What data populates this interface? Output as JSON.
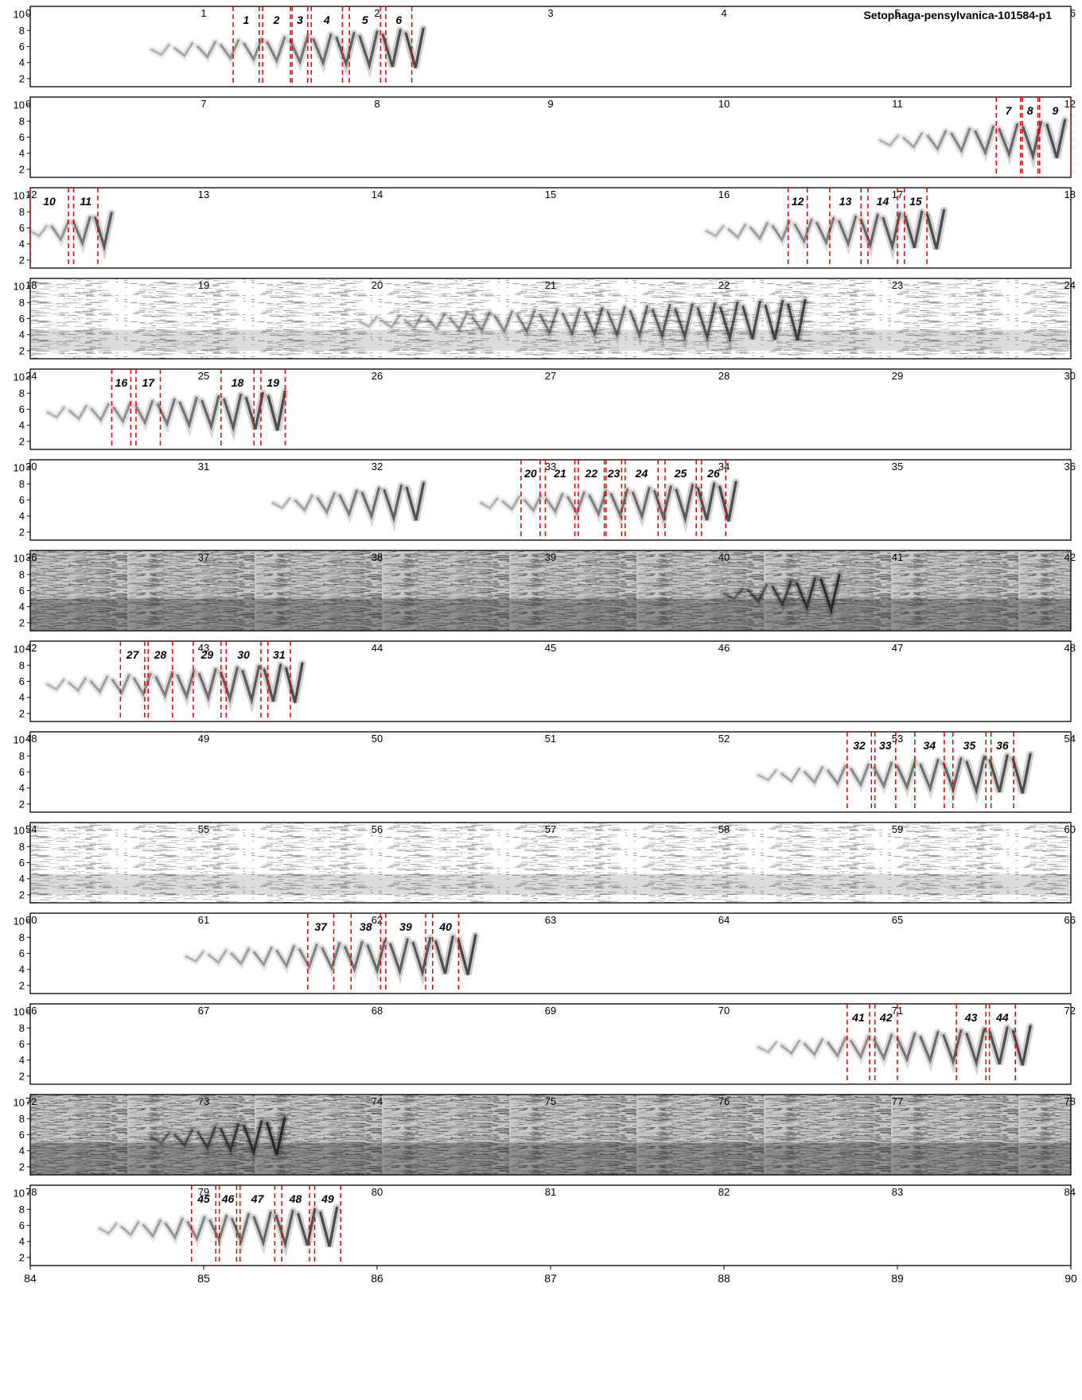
{
  "chart_data": {
    "type": "spectrogram",
    "title": "Setophaga-pensylvanica-101584-p1",
    "row_duration": 6,
    "ylim": [
      1,
      11
    ],
    "y_ticks": [
      2,
      4,
      6,
      8,
      10
    ],
    "rows": [
      {
        "t0": 0,
        "tick_labels": [
          "0",
          "1",
          "2",
          "3",
          "4",
          "5",
          "6"
        ],
        "noise": "clean"
      },
      {
        "t0": 6,
        "tick_labels": [
          "6",
          "7",
          "8",
          "9",
          "10",
          "11",
          "12"
        ],
        "noise": "clean"
      },
      {
        "t0": 12,
        "tick_labels": [
          "12",
          "13",
          "14",
          "15",
          "16",
          "17",
          "18"
        ],
        "noise": "clean"
      },
      {
        "t0": 18,
        "tick_labels": [
          "18",
          "19",
          "20",
          "21",
          "22",
          "23",
          "24"
        ],
        "noise": "light"
      },
      {
        "t0": 24,
        "tick_labels": [
          "24",
          "25",
          "26",
          "27",
          "28",
          "29",
          "30"
        ],
        "noise": "clean"
      },
      {
        "t0": 30,
        "tick_labels": [
          "30",
          "31",
          "32",
          "33",
          "34",
          "35",
          "36"
        ],
        "noise": "clean"
      },
      {
        "t0": 36,
        "tick_labels": [
          "36",
          "37",
          "38",
          "39",
          "40",
          "41",
          "42"
        ],
        "noise": "heavy"
      },
      {
        "t0": 42,
        "tick_labels": [
          "42",
          "43",
          "44",
          "45",
          "46",
          "47",
          "48"
        ],
        "noise": "clean"
      },
      {
        "t0": 48,
        "tick_labels": [
          "48",
          "49",
          "50",
          "51",
          "52",
          "53",
          "54"
        ],
        "noise": "clean"
      },
      {
        "t0": 54,
        "tick_labels": [
          "54",
          "55",
          "56",
          "57",
          "58",
          "59",
          "60"
        ],
        "noise": "light"
      },
      {
        "t0": 60,
        "tick_labels": [
          "60",
          "61",
          "62",
          "63",
          "64",
          "65",
          "66"
        ],
        "noise": "clean"
      },
      {
        "t0": 66,
        "tick_labels": [
          "66",
          "67",
          "68",
          "69",
          "70",
          "71",
          "72"
        ],
        "noise": "clean"
      },
      {
        "t0": 72,
        "tick_labels": [
          "72",
          "73",
          "74",
          "75",
          "76",
          "77",
          "78"
        ],
        "noise": "heavy"
      },
      {
        "t0": 78,
        "tick_labels": [
          "78",
          "79",
          "80",
          "81",
          "82",
          "83",
          "84"
        ],
        "noise": "clean"
      }
    ],
    "bottom_axis_labels": [
      "84",
      "85",
      "86",
      "87",
      "88",
      "89",
      "90"
    ],
    "songs": [
      {
        "row": 0,
        "start": 0.7,
        "end": 2.3
      },
      {
        "row": 1,
        "start": 10.9,
        "end": 12.0
      },
      {
        "row": 2,
        "start": 12.0,
        "end": 12.5
      },
      {
        "row": 2,
        "start": 15.9,
        "end": 17.3
      },
      {
        "row": 3,
        "start": 19.9,
        "end": 22.5
      },
      {
        "row": 4,
        "start": 24.1,
        "end": 25.5
      },
      {
        "row": 5,
        "start": 31.4,
        "end": 32.3
      },
      {
        "row": 5,
        "start": 32.6,
        "end": 34.1
      },
      {
        "row": 6,
        "start": 40.0,
        "end": 40.7
      },
      {
        "row": 7,
        "start": 42.1,
        "end": 43.6
      },
      {
        "row": 8,
        "start": 52.2,
        "end": 53.8
      },
      {
        "row": 10,
        "start": 60.9,
        "end": 62.6
      },
      {
        "row": 11,
        "start": 70.2,
        "end": 71.8
      },
      {
        "row": 12,
        "start": 72.7,
        "end": 73.5
      },
      {
        "row": 13,
        "start": 78.4,
        "end": 79.8
      }
    ],
    "syllables": [
      {
        "label": "1",
        "start": 1.17,
        "end": 1.32
      },
      {
        "label": "2",
        "start": 1.34,
        "end": 1.5
      },
      {
        "label": "3",
        "start": 1.51,
        "end": 1.6
      },
      {
        "label": "4",
        "start": 1.62,
        "end": 1.8
      },
      {
        "label": "5",
        "start": 1.84,
        "end": 2.02
      },
      {
        "label": "6",
        "start": 2.05,
        "end": 2.2
      },
      {
        "label": "7",
        "start": 11.57,
        "end": 11.71
      },
      {
        "label": "8",
        "start": 11.72,
        "end": 11.81
      },
      {
        "label": "9",
        "start": 11.82,
        "end": 12.0
      },
      {
        "label": "10",
        "start": 12.0,
        "end": 12.22
      },
      {
        "label": "11",
        "start": 12.25,
        "end": 12.39
      },
      {
        "label": "12",
        "start": 16.37,
        "end": 16.48
      },
      {
        "label": "13",
        "start": 16.61,
        "end": 16.79
      },
      {
        "label": "14",
        "start": 16.83,
        "end": 17.0
      },
      {
        "label": "15",
        "start": 17.04,
        "end": 17.17
      },
      {
        "label": "16",
        "start": 24.47,
        "end": 24.58
      },
      {
        "label": "17",
        "start": 24.61,
        "end": 24.75
      },
      {
        "label": "18",
        "start": 25.1,
        "end": 25.29
      },
      {
        "label": "19",
        "start": 25.33,
        "end": 25.47
      },
      {
        "label": "20",
        "start": 32.83,
        "end": 32.94
      },
      {
        "label": "21",
        "start": 32.97,
        "end": 33.14
      },
      {
        "label": "22",
        "start": 33.16,
        "end": 33.31
      },
      {
        "label": "23",
        "start": 33.32,
        "end": 33.41
      },
      {
        "label": "24",
        "start": 33.43,
        "end": 33.62
      },
      {
        "label": "25",
        "start": 33.66,
        "end": 33.84
      },
      {
        "label": "26",
        "start": 33.87,
        "end": 34.01
      },
      {
        "label": "27",
        "start": 42.52,
        "end": 42.66
      },
      {
        "label": "28",
        "start": 42.68,
        "end": 42.82
      },
      {
        "label": "29",
        "start": 42.94,
        "end": 43.1
      },
      {
        "label": "30",
        "start": 43.13,
        "end": 43.33
      },
      {
        "label": "31",
        "start": 43.37,
        "end": 43.5
      },
      {
        "label": "32",
        "start": 52.71,
        "end": 52.85
      },
      {
        "label": "33",
        "start": 52.87,
        "end": 52.99
      },
      {
        "label": "34",
        "start": 53.1,
        "end": 53.27
      },
      {
        "label": "35",
        "start": 53.32,
        "end": 53.51
      },
      {
        "label": "36",
        "start": 53.54,
        "end": 53.67
      },
      {
        "label": "37",
        "start": 61.6,
        "end": 61.75
      },
      {
        "label": "38",
        "start": 61.85,
        "end": 62.02
      },
      {
        "label": "39",
        "start": 62.05,
        "end": 62.28
      },
      {
        "label": "40",
        "start": 62.32,
        "end": 62.47
      },
      {
        "label": "41",
        "start": 70.71,
        "end": 70.84
      },
      {
        "label": "42",
        "start": 70.87,
        "end": 71.0
      },
      {
        "label": "43",
        "start": 71.34,
        "end": 71.51
      },
      {
        "label": "44",
        "start": 71.53,
        "end": 71.68
      },
      {
        "label": "45",
        "start": 78.93,
        "end": 79.07
      },
      {
        "label": "46",
        "start": 79.09,
        "end": 79.19
      },
      {
        "label": "47",
        "start": 79.21,
        "end": 79.41
      },
      {
        "label": "48",
        "start": 79.45,
        "end": 79.61
      },
      {
        "label": "49",
        "start": 79.64,
        "end": 79.79
      }
    ]
  }
}
